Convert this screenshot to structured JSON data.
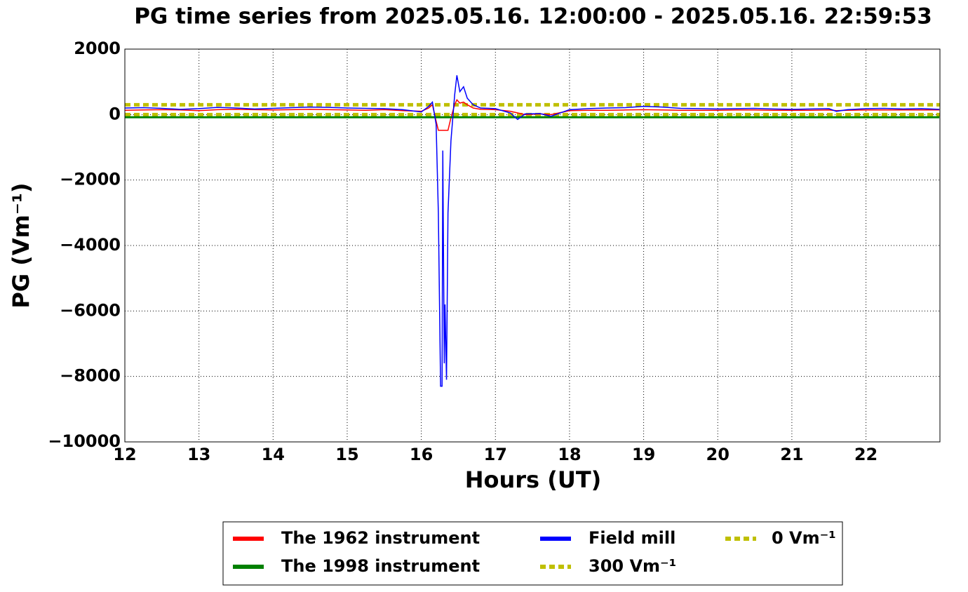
{
  "chart_data": {
    "type": "line",
    "title": "PG time series from 2025.05.16. 12:00:00 - 2025.05.16. 22:59:53",
    "x_label": "Hours (UT)",
    "y_label": "PG (Vm⁻¹)",
    "xlim": [
      12,
      22.998
    ],
    "ylim": [
      -10000,
      2000
    ],
    "xticks": [
      12,
      13,
      14,
      15,
      16,
      17,
      18,
      19,
      20,
      21,
      22
    ],
    "yticks": [
      {
        "value": -10000,
        "label": "−10000"
      },
      {
        "value": -8000,
        "label": "−8000"
      },
      {
        "value": -6000,
        "label": "−6000"
      },
      {
        "value": -4000,
        "label": "−4000"
      },
      {
        "value": -2000,
        "label": "−2000"
      },
      0,
      2000
    ],
    "grid": true,
    "x": [
      12,
      12.25,
      12.5,
      12.75,
      13,
      13.25,
      13.5,
      13.75,
      14,
      14.25,
      14.5,
      14.75,
      15,
      15.25,
      15.5,
      15.75,
      16,
      16.1,
      16.15,
      16.2,
      16.23,
      16.26,
      16.28,
      16.29,
      16.31,
      16.32,
      16.34,
      16.36,
      16.4,
      16.45,
      16.48,
      16.52,
      16.57,
      16.62,
      16.7,
      16.8,
      17,
      17.2,
      17.3,
      17.4,
      17.6,
      17.75,
      18,
      18.25,
      18.5,
      18.75,
      19,
      19.25,
      19.5,
      19.75,
      20,
      20.25,
      20.5,
      20.75,
      21,
      21.25,
      21.5,
      21.6,
      21.75,
      22,
      22.25,
      22.5,
      22.75,
      22.99
    ],
    "series": [
      {
        "name": "The 1962 instrument",
        "color": "#ff0000",
        "values": [
          130,
          140,
          150,
          140,
          120,
          150,
          160,
          150,
          140,
          150,
          160,
          150,
          140,
          130,
          150,
          120,
          100,
          200,
          300,
          -200,
          -480,
          -480,
          -480,
          -480,
          -480,
          -480,
          -480,
          -480,
          -100,
          300,
          450,
          350,
          380,
          300,
          200,
          160,
          150,
          100,
          50,
          0,
          20,
          0,
          120,
          130,
          130,
          140,
          150,
          140,
          130,
          130,
          130,
          140,
          140,
          130,
          130,
          130,
          140,
          120,
          130,
          140,
          140,
          140,
          140,
          140
        ]
      },
      {
        "name": "The 1998 instrument",
        "color": "#008000",
        "values": [
          -80,
          -80,
          -80,
          -80,
          -80,
          -80,
          -80,
          -80,
          -80,
          -80,
          -80,
          -80,
          -80,
          -80,
          -80,
          -80,
          -80,
          -80,
          -80,
          -80,
          -80,
          -80,
          -80,
          -80,
          -80,
          -80,
          -80,
          -80,
          -80,
          -80,
          -80,
          -80,
          -80,
          -80,
          -80,
          -80,
          -80,
          -80,
          -80,
          -80,
          -80,
          -80,
          -80,
          -80,
          -80,
          -80,
          -80,
          -80,
          -80,
          -80,
          -80,
          -80,
          -80,
          -80,
          -80,
          -80,
          -80,
          -80,
          -80,
          -80,
          -80,
          -80,
          -80,
          -80
        ]
      },
      {
        "name": "Field mill",
        "color": "#0000ff",
        "values": [
          200,
          210,
          190,
          160,
          180,
          220,
          200,
          170,
          190,
          210,
          230,
          220,
          200,
          190,
          180,
          150,
          80,
          250,
          380,
          -300,
          -3000,
          -8300,
          -8300,
          -1100,
          -7600,
          -5800,
          -8100,
          -3000,
          -800,
          600,
          1200,
          700,
          850,
          500,
          300,
          200,
          180,
          50,
          -150,
          20,
          30,
          -50,
          150,
          180,
          200,
          210,
          250,
          230,
          190,
          180,
          170,
          180,
          190,
          170,
          160,
          170,
          180,
          100,
          150,
          180,
          190,
          170,
          180,
          160
        ]
      }
    ],
    "reference_lines": [
      {
        "name": "300 Vm⁻¹",
        "value": 300,
        "color": "#bfbf00"
      },
      {
        "name": "0 Vm⁻¹",
        "value": 0,
        "color": "#bfbf00"
      }
    ]
  }
}
